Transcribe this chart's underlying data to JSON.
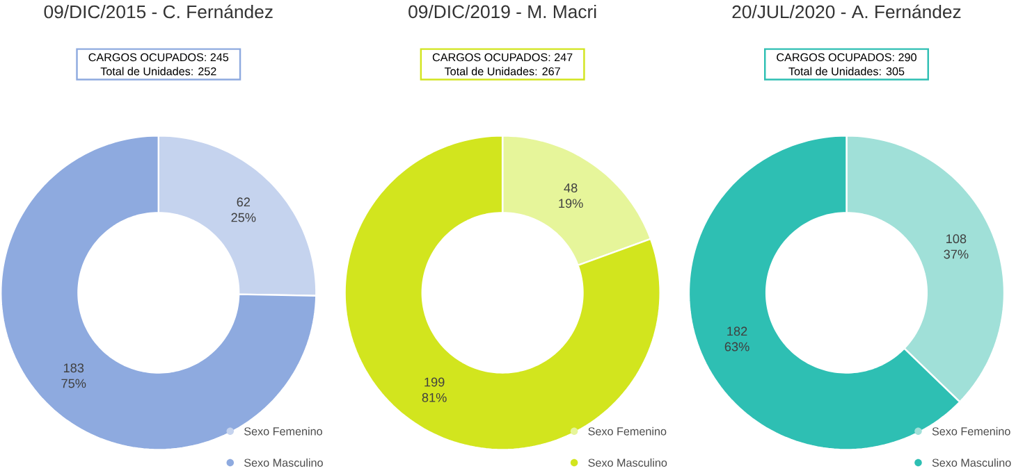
{
  "chart_data": [
    {
      "type": "donut",
      "title": "09/DIC/2015 - C. Fernández",
      "subtitle": "CARGOS OCUPADOS: 245",
      "annotations": [
        "Total de Unidades: 252"
      ],
      "categories": [
        "Sexo Femenino",
        "Sexo Masculino"
      ],
      "values": [
        62,
        183
      ],
      "value_labels": [
        "62 25%",
        "183 75%"
      ],
      "colors": [
        "#c5d3ee",
        "#8eaadf"
      ],
      "legend": "bottom right"
    },
    {
      "type": "donut",
      "title": "09/DIC/2019 - M. Macri",
      "subtitle": "CARGOS OCUPADOS: 247",
      "annotations": [
        "Total de Unidades: 267"
      ],
      "categories": [
        "Sexo Femenino",
        "Sexo Masculino"
      ],
      "values": [
        48,
        199
      ],
      "value_labels": [
        "48 19%",
        "199 81%"
      ],
      "colors": [
        "#e6f59a",
        "#d2e51e"
      ],
      "legend": "bottom right"
    },
    {
      "type": "donut",
      "title": "20/JUL/2020 - A. Fernández",
      "subtitle": "CARGOS OCUPADOS: 290",
      "annotations": [
        "Total de Unidades: 305"
      ],
      "categories": [
        "Sexo Femenino",
        "Sexo Masculino"
      ],
      "values": [
        108,
        182
      ],
      "value_labels": [
        "108 37%",
        "182 63%"
      ],
      "colors": [
        "#a0e0d8",
        "#2ebfb3"
      ],
      "legend": "bottom right"
    }
  ]
}
